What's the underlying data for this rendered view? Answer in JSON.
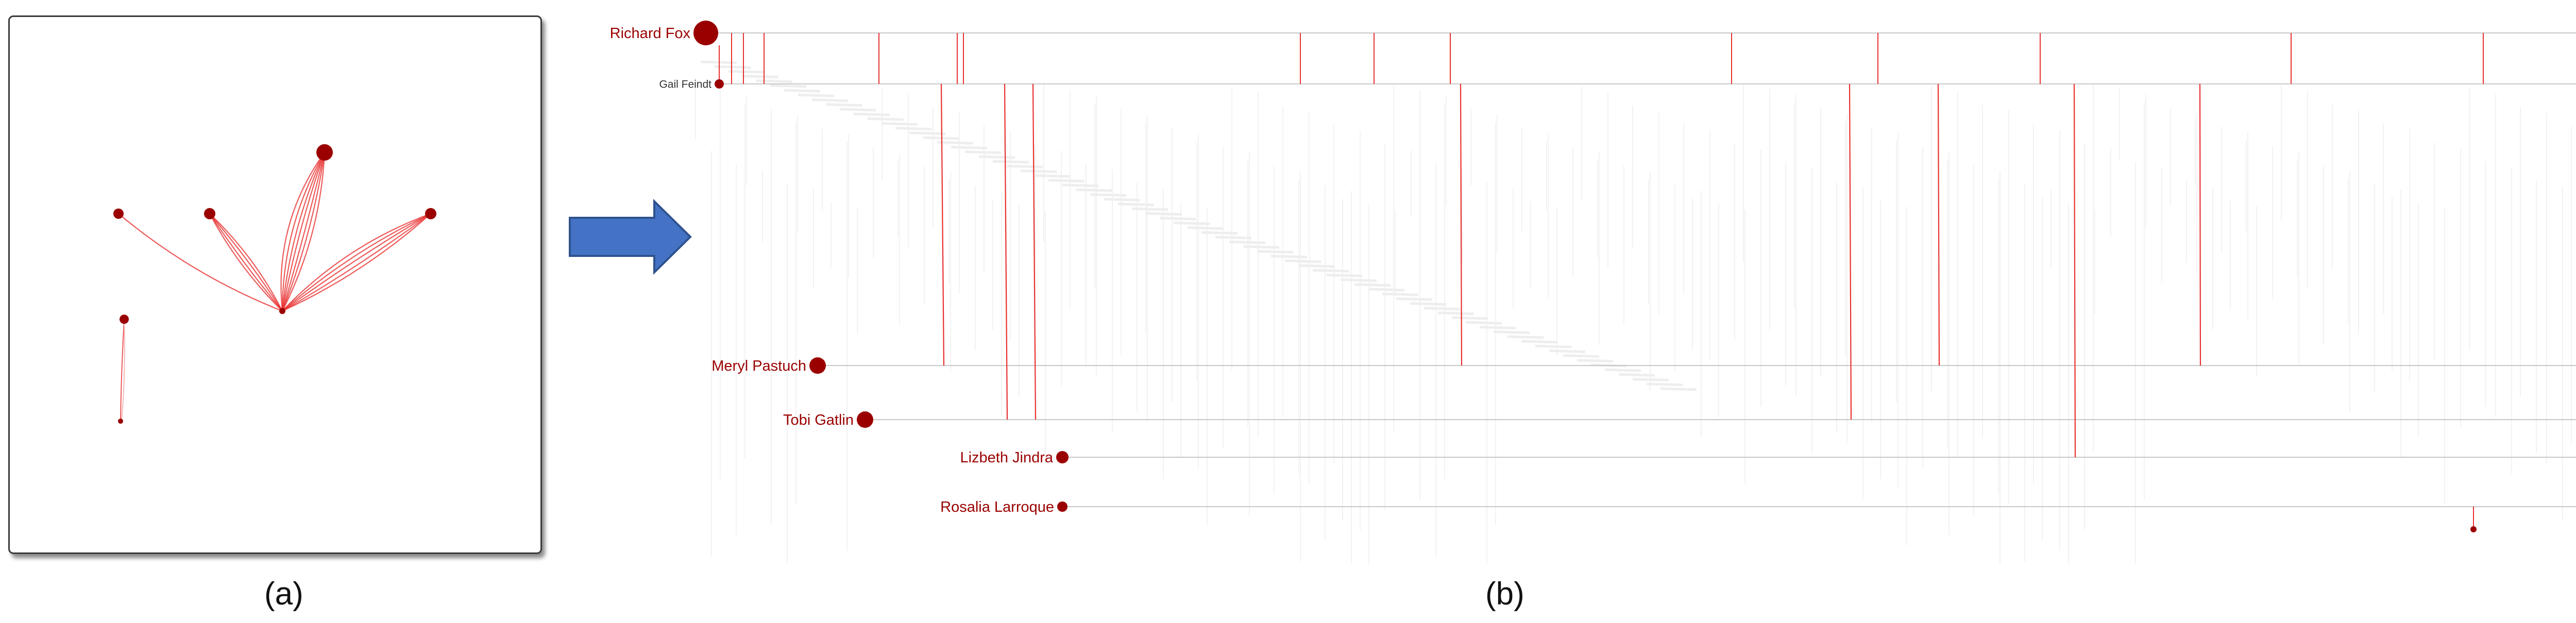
{
  "captions": {
    "a": "(a)",
    "b": "(b)"
  },
  "colors": {
    "node": "#9b0000",
    "edge": "#e83030",
    "faint_edge": "#f3b8b8",
    "line": "#c8c8c8",
    "arrow_fill": "#4472c4",
    "arrow_stroke": "#2f528f"
  },
  "arrow_icon": "right-arrow-icon",
  "panel_a": {
    "node_count": 7,
    "edge_bundles": 5
  },
  "panel_b": {
    "people": [
      {
        "name": "Richard Fox",
        "emphasis": "large"
      },
      {
        "name": "Gail Feindt",
        "emphasis": "small"
      },
      {
        "name": "Meryl Pastuch",
        "emphasis": "medium"
      },
      {
        "name": "Tobi Gatlin",
        "emphasis": "medium"
      },
      {
        "name": "Lizbeth Jindra",
        "emphasis": "small"
      },
      {
        "name": "Rosalia Larroque",
        "emphasis": "small"
      }
    ]
  }
}
